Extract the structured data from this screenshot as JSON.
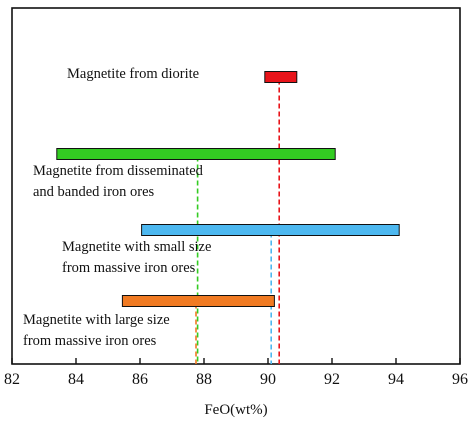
{
  "chart_data": {
    "type": "range-bar",
    "title": "",
    "xlabel": "FeO(wt%)",
    "ylabel": "",
    "xlim": [
      82,
      96
    ],
    "x_ticks": [
      "82",
      "84",
      "86",
      "88",
      "90",
      "92",
      "94",
      "96"
    ],
    "grid": false,
    "series": [
      {
        "label_lines": [
          "Magnetite from diorite"
        ],
        "min": 89.9,
        "max": 90.9,
        "mean": 90.35,
        "color": "#e8141a"
      },
      {
        "label_lines": [
          "Magnetite from disseminated",
          "and banded iron ores"
        ],
        "min": 83.4,
        "max": 92.1,
        "mean": 87.8,
        "color": "#33cc22"
      },
      {
        "label_lines": [
          "Magnetite with small size",
          "from massive iron ores"
        ],
        "min": 86.05,
        "max": 94.1,
        "mean": 90.1,
        "color": "#4db8f0"
      },
      {
        "label_lines": [
          "Magnetite with large size",
          "from massive iron ores"
        ],
        "min": 85.45,
        "max": 90.2,
        "mean": 87.75,
        "color": "#f07a22"
      }
    ]
  }
}
